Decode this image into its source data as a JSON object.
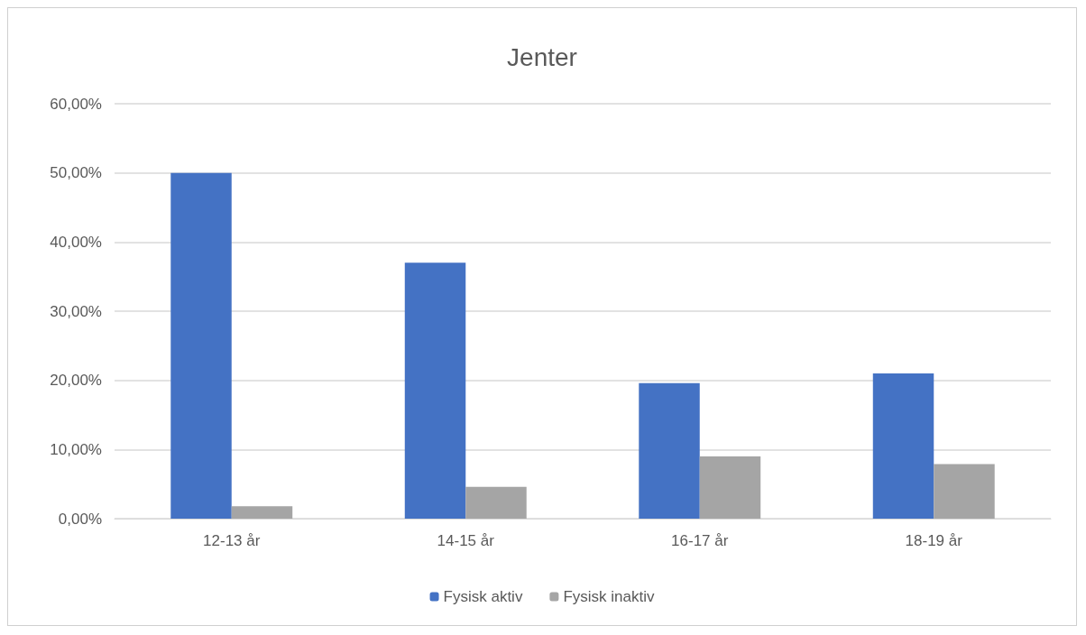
{
  "chart_data": {
    "type": "bar",
    "title": "Jenter",
    "categories": [
      "12-13 år",
      "14-15 år",
      "16-17 år",
      "18-19 år"
    ],
    "series": [
      {
        "name": "Fysisk aktiv",
        "color": "#4472c4",
        "values": [
          50,
          37,
          19.6,
          21
        ]
      },
      {
        "name": "Fysisk inaktiv",
        "color": "#a5a5a5",
        "values": [
          1.8,
          4.6,
          9,
          7.9
        ]
      }
    ],
    "ylim": [
      0,
      60
    ],
    "yticks": [
      {
        "value": 0,
        "label": "0,00%"
      },
      {
        "value": 10,
        "label": "10,00%"
      },
      {
        "value": 20,
        "label": "20,00%"
      },
      {
        "value": 30,
        "label": "30,00%"
      },
      {
        "value": 40,
        "label": "40,00%"
      },
      {
        "value": 50,
        "label": "50,00%"
      },
      {
        "value": 60,
        "label": "60,00%"
      }
    ],
    "grid": "y",
    "legend": "bottom"
  }
}
